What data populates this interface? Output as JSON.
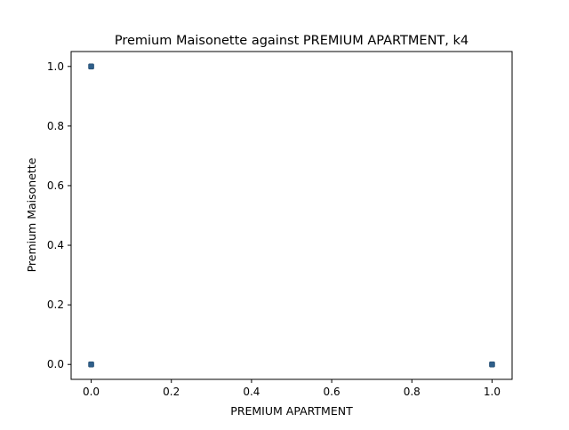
{
  "chart_data": {
    "type": "scatter",
    "title": "Premium Maisonette against PREMIUM APARTMENT, k4",
    "xlabel": "PREMIUM APARTMENT",
    "ylabel": "Premium Maisonette",
    "xlim": [
      -0.05,
      1.05
    ],
    "ylim": [
      -0.05,
      1.05
    ],
    "xticks": [
      0.0,
      0.2,
      0.4,
      0.6,
      0.8,
      1.0
    ],
    "xtick_labels": [
      "0.0",
      "0.2",
      "0.4",
      "0.6",
      "0.8",
      "1.0"
    ],
    "yticks": [
      0.0,
      0.2,
      0.4,
      0.6,
      0.8,
      1.0
    ],
    "ytick_labels": [
      "0.0",
      "0.2",
      "0.4",
      "0.6",
      "0.8",
      "1.0"
    ],
    "grid": false,
    "marker_color": "#2f5f8a",
    "points": [
      {
        "x": 0.0,
        "y": 1.0
      },
      {
        "x": 0.0,
        "y": 0.0
      },
      {
        "x": 1.0,
        "y": 0.0
      }
    ]
  }
}
